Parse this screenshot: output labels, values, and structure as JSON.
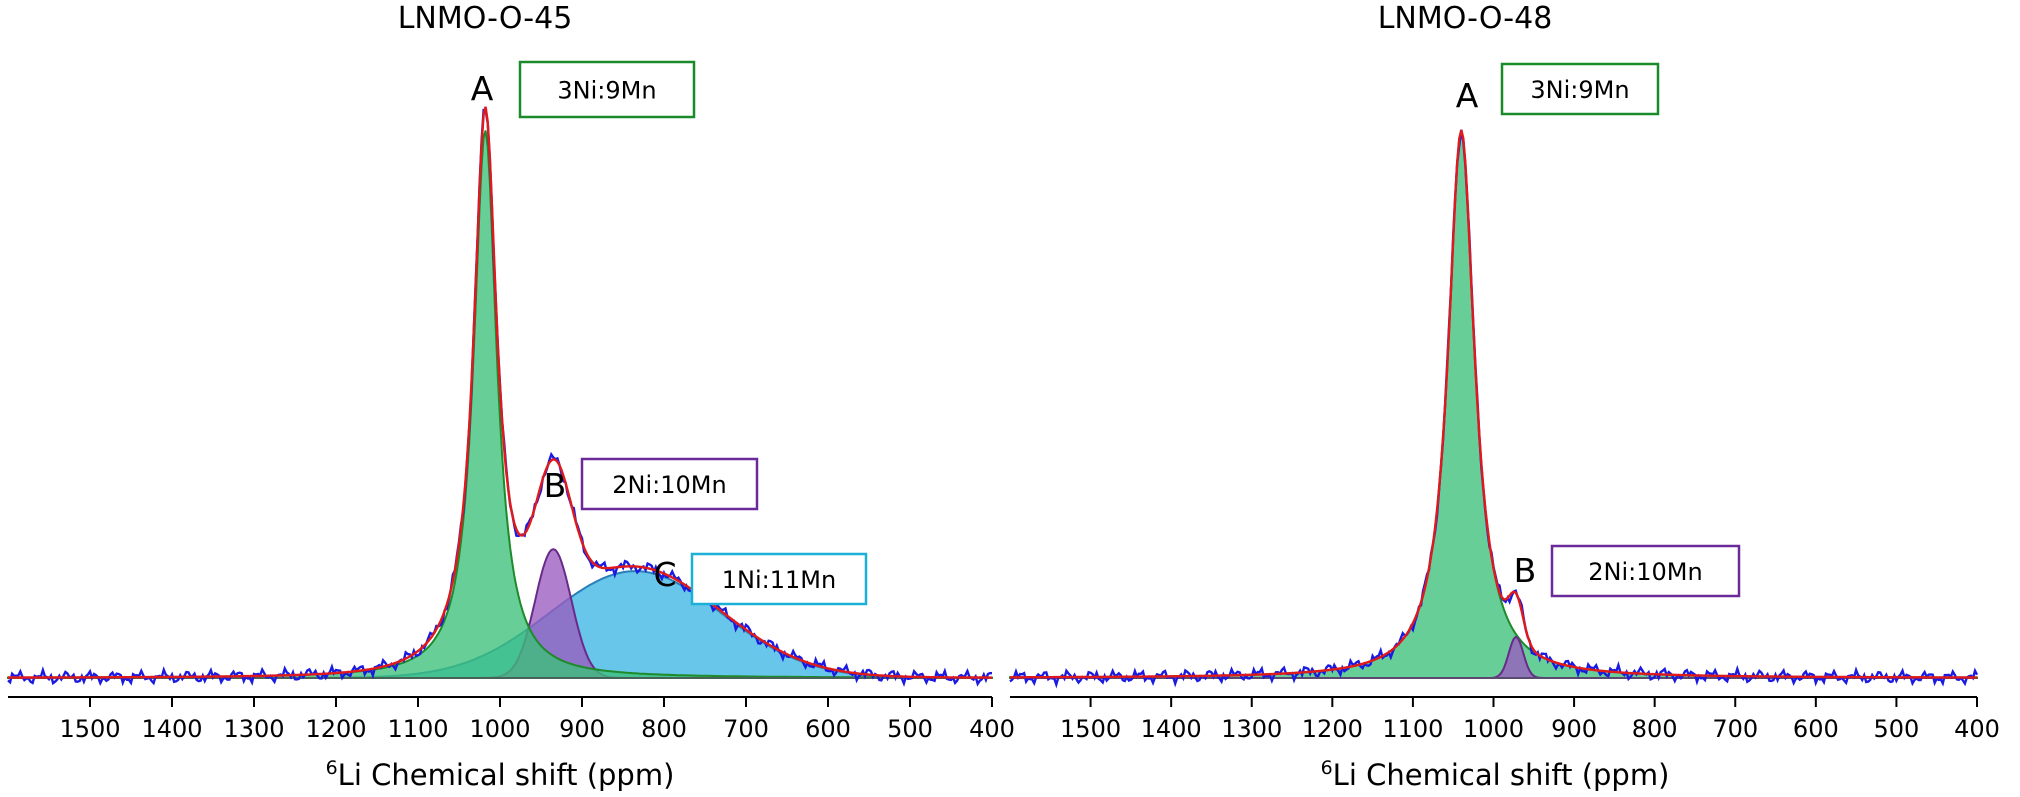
{
  "chart_data": [
    {
      "type": "line",
      "title": "LNMO-O-45",
      "xlabel_sup": "6",
      "xlabel_main": "Li Chemical shift (ppm)",
      "xlim": [
        1600,
        400
      ],
      "xticks": [
        1500,
        1400,
        1300,
        1200,
        1100,
        1000,
        900,
        800,
        700,
        600,
        500,
        400
      ],
      "components": [
        {
          "label": "C",
          "assignment": "1Ni:11Mn",
          "center": 835,
          "amplitude": 0.195,
          "width": 105,
          "shape": "gaussian",
          "fill": "#3cb6e3",
          "stroke": "#2a7fb8"
        },
        {
          "label": "B",
          "assignment": "2Ni:10Mn",
          "center": 935,
          "amplitude": 0.235,
          "width": 22,
          "shape": "gaussian",
          "fill": "#9a5cc0",
          "stroke": "#6a2a8a"
        },
        {
          "label": "A",
          "assignment": "3Ni:9Mn",
          "center": 1018,
          "amplitude": 1.0,
          "width": 17,
          "shape": "lorentzian",
          "fill": "#3cc07a",
          "stroke": "#1f8a2a"
        }
      ],
      "box_colors": {
        "A": "#1a8a2a",
        "B": "#6a2a9a",
        "C": "#1ab0d8"
      },
      "experimental_color": "#1a1ae0",
      "fit_color": "#e01a1a"
    },
    {
      "type": "line",
      "title": "LNMO-O-48",
      "xlabel_sup": "6",
      "xlabel_main": "Li Chemical shift (ppm)",
      "xlim": [
        1600,
        400
      ],
      "xticks": [
        1500,
        1400,
        1300,
        1200,
        1100,
        1000,
        900,
        800,
        700,
        600,
        500,
        400
      ],
      "components": [
        {
          "label": "A",
          "assignment": "3Ni:9Mn",
          "center": 1040,
          "amplitude": 1.0,
          "width": 20,
          "shape": "lorentzian",
          "fill": "#3cc07a",
          "stroke": "#1f8a2a"
        },
        {
          "label": "B",
          "assignment": "2Ni:10Mn",
          "center": 972,
          "amplitude": 0.075,
          "width": 9,
          "shape": "gaussian",
          "fill": "#9a5cc0",
          "stroke": "#6a2a8a"
        }
      ],
      "box_colors": {
        "A": "#1a8a2a",
        "B": "#6a2a9a"
      },
      "experimental_color": "#1a1ae0",
      "fit_color": "#e01a1a"
    }
  ]
}
